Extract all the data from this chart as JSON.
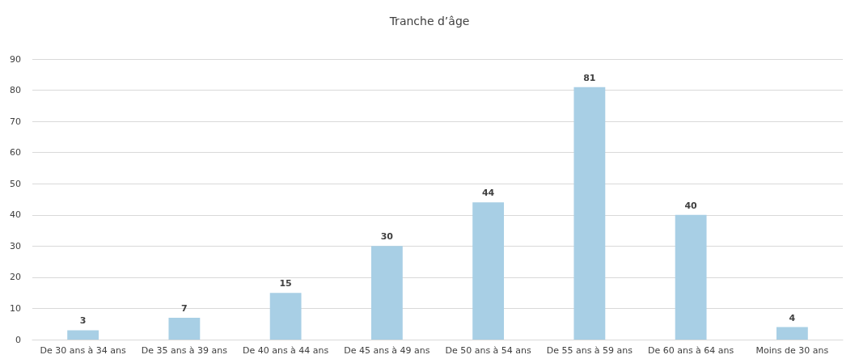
{
  "chart_data": {
    "type": "bar",
    "title": "Tranche d’âge",
    "categories": [
      "De 30 ans à 34 ans",
      "De 35 ans à 39 ans",
      "De 40 ans à 44 ans",
      "De 45 ans à 49 ans",
      "De 50 ans à 54 ans",
      "De 55 ans à 59 ans",
      "De 60 ans à 64 ans",
      "Moins de 30 ans"
    ],
    "values": [
      3,
      7,
      15,
      30,
      44,
      81,
      40,
      4
    ],
    "color": "#a8cfe5",
    "ylim": [
      0,
      90
    ],
    "yticks": [
      0,
      10,
      20,
      30,
      40,
      50,
      60,
      70,
      80,
      90
    ],
    "grid": "y",
    "data_labels": true
  }
}
